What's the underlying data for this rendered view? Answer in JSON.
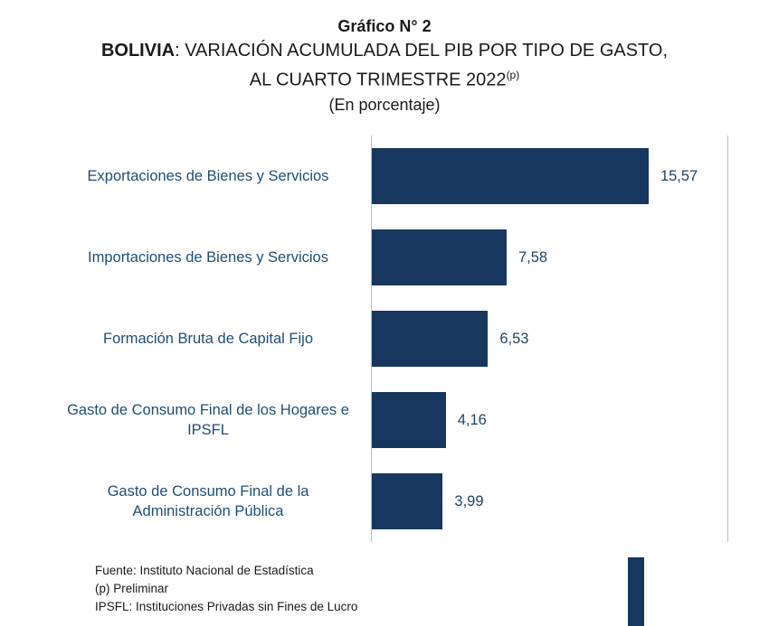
{
  "heading": {
    "line1": "Gráfico N° 2",
    "line2_bold": "BOLIVIA",
    "line2_rest": ": VARIACIÓN ACUMULADA DEL PIB POR TIPO DE GASTO,",
    "line3": "AL CUARTO TRIMESTRE 2022",
    "line3_sup": "(p)",
    "line4": "(En porcentaje)"
  },
  "chart_data": {
    "type": "bar",
    "orientation": "horizontal",
    "title": "Gráfico N° 2",
    "subtitle": "BOLIVIA: VARIACIÓN ACUMULADA DEL PIB POR TIPO DE GASTO, AL CUARTO TRIMESTRE 2022(p)",
    "units_label": "(En porcentaje)",
    "categories": [
      "Exportaciones de Bienes y Servicios",
      "Importaciones de Bienes y Servicios",
      "Formación Bruta de Capital Fijo",
      "Gasto de Consumo Final de los Hogares e IPSFL",
      "Gasto de Consumo Final de la Administración Pública"
    ],
    "values": [
      15.57,
      7.58,
      6.53,
      4.16,
      3.99
    ],
    "value_labels": [
      "15,57",
      "7,58",
      "6,53",
      "4,16",
      "3,99"
    ],
    "xlim": [
      0,
      20
    ],
    "grid": "left-right-borders-only",
    "legend": "none",
    "bar_color": "#17375e",
    "label_color": "#1f4e79",
    "axis_line_color": "#bfbfbf"
  },
  "footer": {
    "lines": [
      "Fuente: Instituto Nacional de Estadística",
      "(p) Preliminar",
      "IPSFL: Instituciones Privadas sin Fines de Lucro"
    ]
  }
}
